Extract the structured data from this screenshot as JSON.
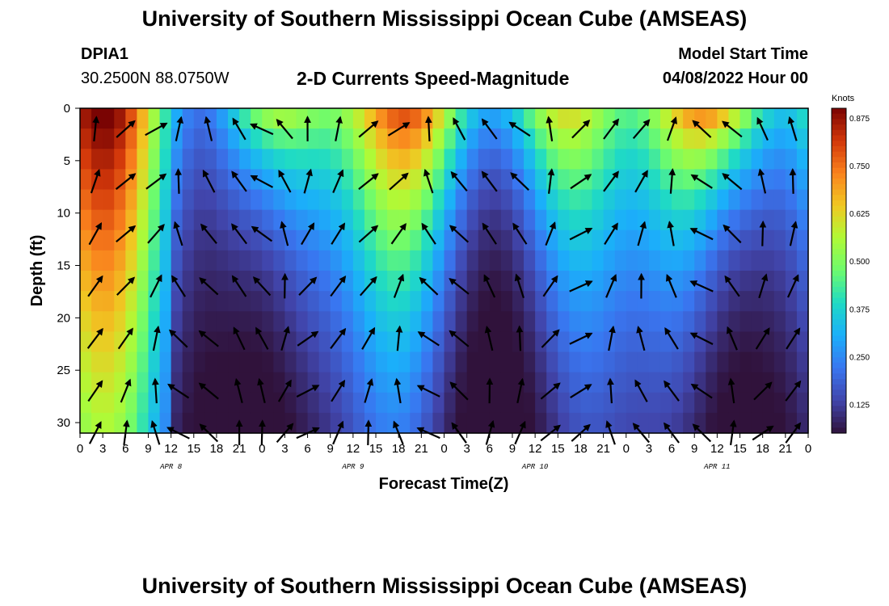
{
  "header": {
    "title": "University of Southern Mississippi Ocean Cube (AMSEAS)",
    "station_id": "DPIA1",
    "coords": "30.2500N  88.0750W",
    "chart_title": "2-D Currents Speed-Magnitude",
    "model_start_label": "Model Start Time",
    "model_start_value": "04/08/2022 Hour 00"
  },
  "footer": {
    "title": "University of Southern Mississippi Ocean Cube (AMSEAS)"
  },
  "chart_data": {
    "type": "heatmap",
    "title": "2-D Currents Speed-Magnitude",
    "xlabel": "Forecast Time(Z)",
    "ylabel": "Depth (ft)",
    "x_range": [
      0,
      96
    ],
    "y_range": [
      0,
      31
    ],
    "x_tick_labels": [
      "0",
      "3",
      "6",
      "9",
      "12",
      "15",
      "18",
      "21",
      "0",
      "3",
      "6",
      "9",
      "12",
      "15",
      "18",
      "21",
      "0",
      "3",
      "6",
      "9",
      "12",
      "15",
      "18",
      "21",
      "0",
      "3",
      "6",
      "9",
      "12",
      "15",
      "18",
      "21",
      "0"
    ],
    "day_labels": [
      {
        "hour": 12,
        "label": "APR 8"
      },
      {
        "hour": 36,
        "label": "APR 9"
      },
      {
        "hour": 60,
        "label": "APR 10"
      },
      {
        "hour": 84,
        "label": "APR 11"
      }
    ],
    "y_ticks": [
      0,
      5,
      10,
      15,
      20,
      25,
      30
    ],
    "colorbar": {
      "unit": "Knots",
      "range": [
        0.05,
        0.9
      ],
      "ticks": [
        "0.875",
        "0.750",
        "0.625",
        "0.500",
        "0.375",
        "0.250",
        "0.125"
      ],
      "tick_values": [
        0.875,
        0.75,
        0.625,
        0.5,
        0.375,
        0.25,
        0.125
      ]
    },
    "vectors": {
      "hours": [
        2,
        6,
        10,
        13,
        17,
        21,
        24,
        27,
        30,
        34,
        38,
        42,
        46,
        50,
        54,
        58,
        62,
        66,
        70,
        74,
        78,
        82,
        86,
        90,
        94
      ],
      "depths": [
        2,
        7,
        12,
        17,
        22,
        27,
        31
      ]
    },
    "speed_grid": {
      "cols": 64,
      "rows": 16,
      "hours_step": 1.5,
      "depth_step": 2,
      "values": "generated from time series of surface speed and depth decay"
    }
  }
}
